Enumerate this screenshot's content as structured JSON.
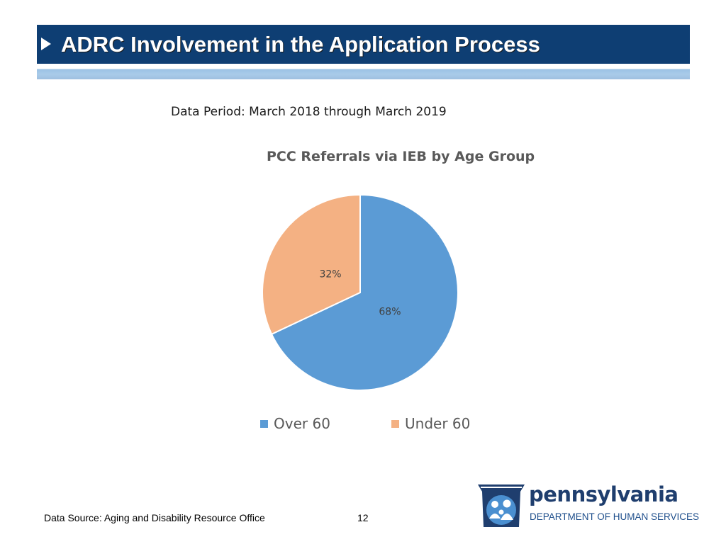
{
  "header": {
    "title": "ADRC Involvement in the Application Process"
  },
  "data_period": "Data Period: March 2018 through March 2019",
  "chart_data": {
    "type": "pie",
    "title": "PCC Referrals via IEB by Age Group",
    "categories": [
      "Over 60",
      "Under 60"
    ],
    "values": [
      68,
      32
    ],
    "value_labels": [
      "68%",
      "32%"
    ],
    "colors": [
      "#5b9bd5",
      "#f4b183"
    ],
    "legend_position": "bottom"
  },
  "footer": {
    "source": "Data Source: Aging and Disability Resource Office",
    "page_number": "12"
  },
  "logo": {
    "wordmark": "pennsylvania",
    "department": "DEPARTMENT OF HUMAN SERVICES"
  },
  "colors": {
    "header_bg": "#0e3e73",
    "accent_bar": "#a9cbe9",
    "logo_blue": "#1f3e6e"
  }
}
